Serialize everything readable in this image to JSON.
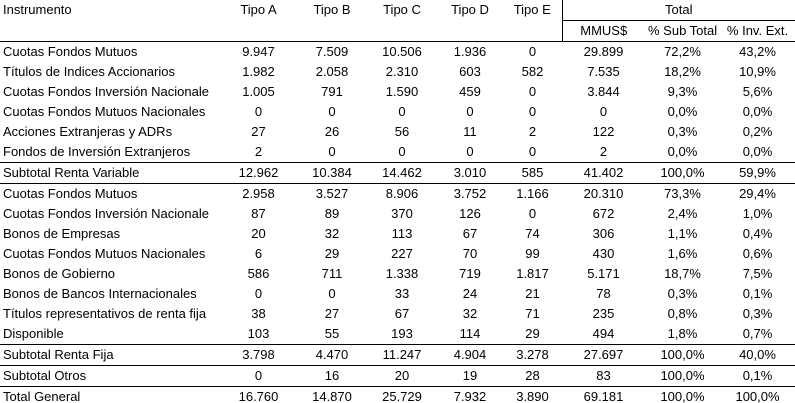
{
  "table": {
    "header": [
      "Instrumento",
      "Tipo A",
      "Tipo B",
      "Tipo C",
      "Tipo D",
      "Tipo E",
      "Total"
    ],
    "subheader": [
      "MMUS$",
      "% Sub Total",
      "% Inv. Ext."
    ],
    "rows": [
      [
        "Cuotas Fondos Mutuos",
        "9.947",
        "7.509",
        "10.506",
        "1.936",
        "0",
        "29.899",
        "72,2%",
        "43,2%"
      ],
      [
        "Títulos de Indices Accionarios",
        "1.982",
        "2.058",
        "2.310",
        "603",
        "582",
        "7.535",
        "18,2%",
        "10,9%"
      ],
      [
        "Cuotas Fondos Inversión Nacionale",
        "1.005",
        "791",
        "1.590",
        "459",
        "0",
        "3.844",
        "9,3%",
        "5,6%"
      ],
      [
        "Cuotas Fondos Mutuos Nacionales",
        "0",
        "0",
        "0",
        "0",
        "0",
        "0",
        "0,0%",
        "0,0%"
      ],
      [
        "Acciones Extranjeras y ADRs",
        "27",
        "26",
        "56",
        "11",
        "2",
        "122",
        "0,3%",
        "0,2%"
      ],
      [
        "Fondos de Inversión Extranjeros",
        "2",
        "0",
        "0",
        "0",
        "0",
        "2",
        "0,0%",
        "0,0%"
      ],
      [
        "Subtotal Renta Variable",
        "12.962",
        "10.384",
        "14.462",
        "3.010",
        "585",
        "41.402",
        "100,0%",
        "59,9%"
      ],
      [
        "Cuotas Fondos Mutuos",
        "2.958",
        "3.527",
        "8.906",
        "3.752",
        "1.166",
        "20.310",
        "73,3%",
        "29,4%"
      ],
      [
        "Cuotas Fondos Inversión Nacionale",
        "87",
        "89",
        "370",
        "126",
        "0",
        "672",
        "2,4%",
        "1,0%"
      ],
      [
        "Bonos de Empresas",
        "20",
        "32",
        "113",
        "67",
        "74",
        "306",
        "1,1%",
        "0,4%"
      ],
      [
        "Cuotas Fondos Mutuos Nacionales",
        "6",
        "29",
        "227",
        "70",
        "99",
        "430",
        "1,6%",
        "0,6%"
      ],
      [
        "Bonos de Gobierno",
        "586",
        "711",
        "1.338",
        "719",
        "1.817",
        "5.171",
        "18,7%",
        "7,5%"
      ],
      [
        "Bonos de Bancos Internacionales",
        "0",
        "0",
        "33",
        "24",
        "21",
        "78",
        "0,3%",
        "0,1%"
      ],
      [
        "Títulos representativos de renta fija",
        "38",
        "27",
        "67",
        "32",
        "71",
        "235",
        "0,8%",
        "0,3%"
      ],
      [
        "Disponible",
        "103",
        "55",
        "193",
        "114",
        "29",
        "494",
        "1,8%",
        "0,7%"
      ],
      [
        "Subtotal Renta Fija",
        "3.798",
        "4.470",
        "11.247",
        "4.904",
        "3.278",
        "27.697",
        "100,0%",
        "40,0%"
      ],
      [
        "Subtotal Otros",
        "0",
        "16",
        "20",
        "19",
        "28",
        "83",
        "100,0%",
        "0,1%"
      ],
      [
        "Total General",
        "16.760",
        "14.870",
        "25.729",
        "7.932",
        "3.890",
        "69.181",
        "100,0%",
        "100,0%"
      ]
    ]
  }
}
